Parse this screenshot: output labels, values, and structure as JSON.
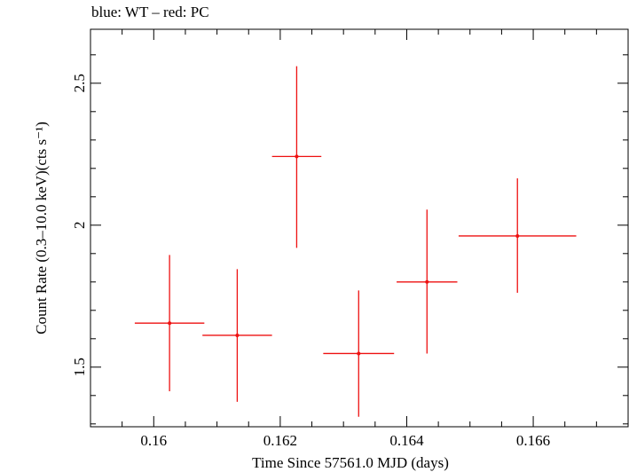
{
  "header": {
    "title": "blue: WT – red: PC"
  },
  "colors": {
    "series": "#ee1111",
    "axes": "#000000"
  },
  "chart_data": {
    "type": "scatter",
    "title": "blue: WT – red: PC",
    "xlabel": "Time Since 57561.0 MJD (days)",
    "ylabel": "Count Rate (0.3–10.0 keV)(cts s⁻¹)",
    "xlim": [
      0.159,
      0.1675
    ],
    "ylim": [
      1.29,
      2.69
    ],
    "xticks": [
      0.16,
      0.162,
      0.164,
      0.166
    ],
    "xtick_labels": [
      "0.16",
      "0.162",
      "0.164",
      "0.166"
    ],
    "yticks": [
      1.5,
      2,
      2.5
    ],
    "ytick_labels": [
      "1.5",
      "2",
      "2.5"
    ],
    "grid": false,
    "series": [
      {
        "color": "#ee1111",
        "points": [
          {
            "x": 0.16025,
            "xerr": 0.00055,
            "y": 1.655,
            "ylo": 1.415,
            "yhi": 1.895
          },
          {
            "x": 0.16132,
            "xerr": 0.00055,
            "y": 1.612,
            "ylo": 1.378,
            "yhi": 1.845
          },
          {
            "x": 0.16226,
            "xerr": 0.00039,
            "y": 2.242,
            "ylo": 1.92,
            "yhi": 2.56
          },
          {
            "x": 0.16324,
            "xerr": 0.00056,
            "y": 1.548,
            "ylo": 1.325,
            "yhi": 1.77
          },
          {
            "x": 0.16432,
            "xerr": 0.00048,
            "y": 1.8,
            "ylo": 1.548,
            "yhi": 2.055
          },
          {
            "x": 0.16575,
            "xerr": 0.00093,
            "y": 1.962,
            "ylo": 1.762,
            "yhi": 2.165
          }
        ]
      }
    ]
  }
}
